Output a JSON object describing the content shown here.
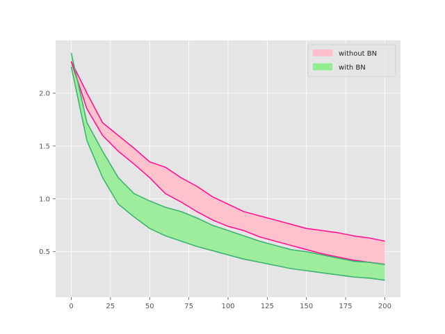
{
  "chart_data": {
    "type": "area",
    "title": "",
    "xlabel": "",
    "ylabel": "",
    "xlim": [
      -10,
      210
    ],
    "ylim": [
      0.07,
      2.5
    ],
    "grid": true,
    "legend_position": "top-right",
    "x_ticks": [
      0,
      25,
      50,
      75,
      100,
      125,
      150,
      175,
      200
    ],
    "y_ticks": [
      0.5,
      1.0,
      1.5,
      2.0
    ],
    "x_tick_labels": [
      "0",
      "25",
      "50",
      "75",
      "100",
      "125",
      "150",
      "175",
      "200"
    ],
    "y_tick_labels": [
      "0.5",
      "1.0",
      "1.5",
      "2.0"
    ],
    "x": [
      0,
      10,
      20,
      30,
      40,
      50,
      60,
      70,
      80,
      90,
      100,
      110,
      120,
      130,
      140,
      150,
      160,
      170,
      180,
      190,
      200
    ],
    "series": [
      {
        "name": "without BN",
        "fill_color": "#ffc0cb",
        "line_color": "#ff1493",
        "upper": [
          2.3,
          2.0,
          1.72,
          1.6,
          1.48,
          1.35,
          1.3,
          1.2,
          1.12,
          1.02,
          0.95,
          0.88,
          0.84,
          0.8,
          0.76,
          0.72,
          0.7,
          0.68,
          0.65,
          0.63,
          0.6
        ],
        "lower": [
          2.3,
          1.85,
          1.6,
          1.45,
          1.33,
          1.2,
          1.05,
          0.97,
          0.88,
          0.8,
          0.74,
          0.7,
          0.64,
          0.6,
          0.56,
          0.52,
          0.48,
          0.45,
          0.42,
          0.4,
          0.38
        ]
      },
      {
        "name": "with BN",
        "fill_color": "#90ee90",
        "line_color": "#3cb371",
        "upper": [
          2.38,
          1.72,
          1.45,
          1.2,
          1.05,
          0.98,
          0.92,
          0.88,
          0.82,
          0.75,
          0.7,
          0.65,
          0.6,
          0.56,
          0.52,
          0.5,
          0.47,
          0.44,
          0.41,
          0.4,
          0.38
        ],
        "lower": [
          2.25,
          1.55,
          1.2,
          0.95,
          0.83,
          0.72,
          0.65,
          0.6,
          0.55,
          0.51,
          0.47,
          0.43,
          0.4,
          0.37,
          0.34,
          0.32,
          0.3,
          0.28,
          0.26,
          0.25,
          0.23
        ]
      }
    ]
  }
}
